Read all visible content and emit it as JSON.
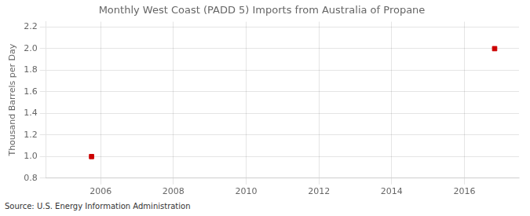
{
  "chart_data": {
    "type": "scatter",
    "title": "Monthly West Coast (PADD 5) Imports from Australia of Propane",
    "ylabel": "Thousand Barrels per Day",
    "source": "Source: U.S. Energy Information Administration",
    "x": [
      2005.75,
      2016.83
    ],
    "values": [
      1.0,
      2.0
    ],
    "color": "#cc0000",
    "marker": "square",
    "xlim": [
      2004.5,
      2017.5
    ],
    "xticks": [
      2006,
      2008,
      2010,
      2012,
      2014,
      2016
    ],
    "ylim": [
      0.8,
      2.25
    ],
    "yticks": [
      0.8,
      {
        "value": 1.0,
        "label": "1.0"
      },
      1.2,
      1.4,
      1.6,
      1.8,
      {
        "value": 2.0,
        "label": "2.0"
      },
      2.2
    ],
    "grid": true
  }
}
